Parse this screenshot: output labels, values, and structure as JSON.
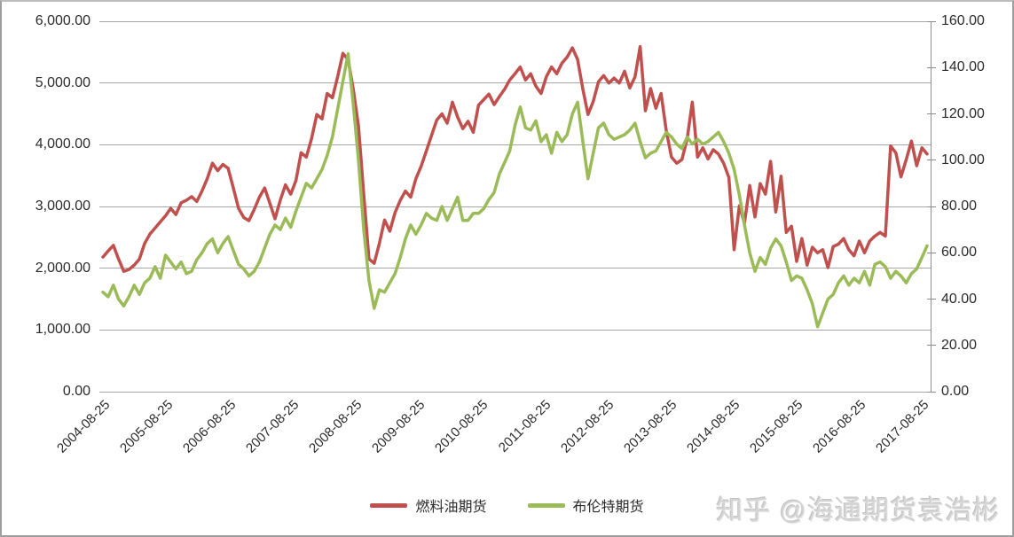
{
  "watermark": {
    "text": "知乎 @海通期货袁浩彬"
  },
  "chart_data": {
    "type": "line",
    "title": "",
    "grid": true,
    "legend_position": "bottom",
    "x_axis": {
      "tick_labels": [
        "2004-08-25",
        "2005-08-25",
        "2006-08-25",
        "2007-08-25",
        "2008-08-25",
        "2009-08-25",
        "2010-08-25",
        "2011-08-25",
        "2012-08-25",
        "2013-08-25",
        "2014-08-25",
        "2015-08-25",
        "2016-08-25",
        "2017-08-25"
      ]
    },
    "y_left": {
      "min": 0,
      "max": 6000,
      "tick_labels": [
        "6,000.00",
        "5,000.00",
        "4,000.00",
        "3,000.00",
        "2,000.00",
        "1,000.00",
        "0.00"
      ]
    },
    "y_right": {
      "min": 0,
      "max": 160,
      "tick_labels": [
        "160.00",
        "140.00",
        "120.00",
        "100.00",
        "80.00",
        "60.00",
        "40.00",
        "20.00",
        "0.00"
      ]
    },
    "series": [
      {
        "name": "燃料油期货",
        "color": "#C0504D",
        "axis": "left",
        "start": "2004-08",
        "points_per_year": 12,
        "values": [
          2180,
          2280,
          2370,
          2150,
          1950,
          1980,
          2050,
          2150,
          2400,
          2550,
          2650,
          2750,
          2850,
          2970,
          2870,
          3060,
          3100,
          3160,
          3080,
          3250,
          3450,
          3700,
          3580,
          3680,
          3620,
          3300,
          2970,
          2820,
          2770,
          2950,
          3150,
          3300,
          3050,
          2800,
          3100,
          3350,
          3200,
          3420,
          3870,
          3800,
          4100,
          4490,
          4420,
          4830,
          4760,
          5100,
          5480,
          5380,
          4900,
          4300,
          3200,
          2150,
          2080,
          2400,
          2780,
          2600,
          2900,
          3100,
          3250,
          3150,
          3450,
          3650,
          3900,
          4150,
          4400,
          4500,
          4350,
          4690,
          4450,
          4260,
          4380,
          4200,
          4640,
          4730,
          4820,
          4650,
          4780,
          4900,
          5050,
          5150,
          5260,
          5050,
          5150,
          4950,
          4830,
          5100,
          5260,
          5150,
          5320,
          5420,
          5570,
          5380,
          4900,
          4490,
          4700,
          5020,
          5120,
          5000,
          5080,
          5000,
          5190,
          4920,
          5100,
          5590,
          4550,
          4910,
          4590,
          4830,
          4230,
          3800,
          3700,
          3760,
          4100,
          4690,
          3800,
          3950,
          3770,
          3920,
          3850,
          3700,
          3470,
          2300,
          3010,
          2730,
          3340,
          2830,
          3370,
          3200,
          3730,
          2910,
          3490,
          2580,
          2680,
          2110,
          2480,
          2050,
          2340,
          2250,
          2300,
          2010,
          2350,
          2390,
          2480,
          2300,
          2200,
          2440,
          2250,
          2440,
          2520,
          2580,
          2520,
          3980,
          3870,
          3480,
          3760,
          4060,
          3660,
          3950,
          3850
        ]
      },
      {
        "name": "布伦特期货",
        "color": "#9BBB59",
        "axis": "right",
        "start": "2004-08",
        "points_per_year": 12,
        "values": [
          43,
          41,
          46,
          40,
          37,
          41,
          46,
          42,
          47,
          49,
          54,
          49,
          59,
          56,
          53,
          56,
          51,
          52,
          57,
          60,
          64,
          66,
          60,
          64,
          67,
          61,
          55,
          53,
          50,
          52,
          56,
          62,
          68,
          72,
          70,
          75,
          71,
          78,
          84,
          90,
          88,
          92,
          96,
          102,
          110,
          122,
          134,
          146,
          124,
          100,
          70,
          48,
          36,
          44,
          43,
          47,
          51,
          58,
          66,
          72,
          68,
          72,
          77,
          75,
          74,
          80,
          74,
          79,
          84,
          74,
          74,
          77,
          77,
          79,
          83,
          86,
          94,
          99,
          104,
          115,
          123,
          114,
          113,
          117,
          108,
          111,
          103,
          112,
          108,
          111,
          120,
          125,
          108,
          92,
          103,
          114,
          116,
          111,
          109,
          110,
          111,
          113,
          116,
          108,
          101,
          103,
          104,
          108,
          112,
          110,
          107,
          105,
          110,
          107,
          109,
          107,
          108,
          110,
          112,
          108,
          103,
          96,
          85,
          72,
          60,
          52,
          58,
          55,
          62,
          66,
          63,
          56,
          48,
          50,
          49,
          44,
          38,
          28,
          34,
          40,
          42,
          47,
          50,
          46,
          49,
          47,
          52,
          46,
          55,
          56,
          54,
          49,
          52,
          50,
          47,
          51,
          53,
          58,
          63
        ]
      }
    ]
  }
}
